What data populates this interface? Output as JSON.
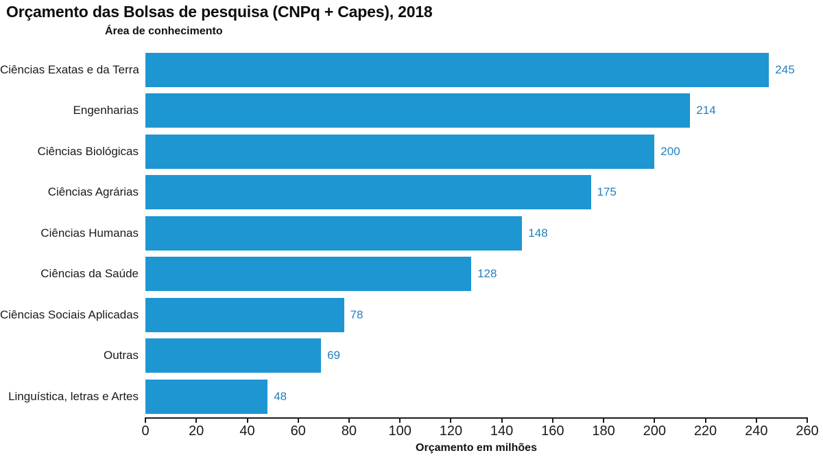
{
  "header": {
    "title": "Orçamento das Bolsas de pesquisa (CNPq + Capes), 2018"
  },
  "chart_data": {
    "type": "bar",
    "orientation": "horizontal",
    "title": "Orçamento das Bolsas de pesquisa (CNPq + Capes), 2018",
    "ylabel": "Área de conhecimento",
    "xlabel": "Orçamento em milhões",
    "categories": [
      "Ciências Exatas e da Terra",
      "Engenharias",
      "Ciências Biológicas",
      "Ciências Agrárias",
      "Ciências Humanas",
      "Ciências da Saúde",
      "Ciências Sociais Aplicadas",
      "Outras",
      "Linguística, letras e Artes"
    ],
    "values": [
      245,
      214,
      200,
      175,
      148,
      128,
      78,
      69,
      48
    ],
    "xlim": [
      0,
      260
    ],
    "xticks": [
      0,
      20,
      40,
      60,
      80,
      100,
      120,
      140,
      160,
      180,
      200,
      220,
      240,
      260
    ],
    "grid": false,
    "legend": false,
    "data_labels": true,
    "bar_color": "#1e96d2",
    "value_label_color": "#2180c2",
    "axis_color": "#1a1a1a",
    "text_color": "#111111",
    "background_color": "#ffffff"
  }
}
